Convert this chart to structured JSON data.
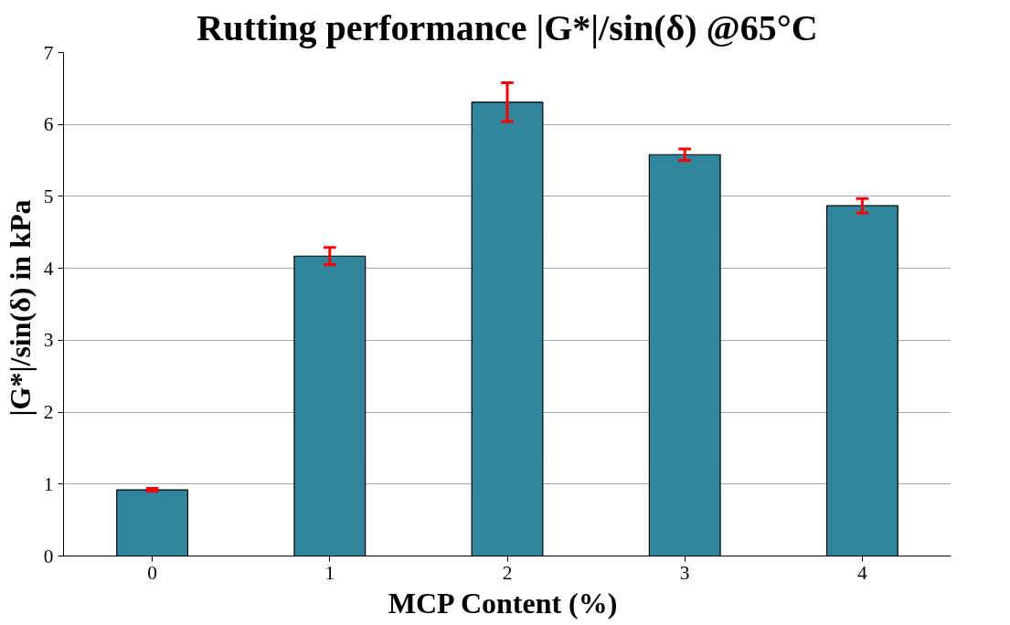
{
  "chart_data": {
    "type": "bar",
    "title": "Rutting performance |G*|/sin(δ) @65°C",
    "xlabel": "MCP Content  (%)",
    "ylabel": "|G*|/sin(δ)  in kPa",
    "categories": [
      "0",
      "1",
      "2",
      "3",
      "4"
    ],
    "series": [
      {
        "color": "#31859c",
        "values": [
          0.92,
          4.17,
          6.31,
          5.58,
          4.87
        ],
        "errors": [
          0.02,
          0.12,
          0.27,
          0.08,
          0.1
        ]
      }
    ],
    "ylim": [
      0,
      7
    ],
    "yticks": [
      0,
      1,
      2,
      3,
      4,
      5,
      6,
      7
    ],
    "grid": "y"
  }
}
